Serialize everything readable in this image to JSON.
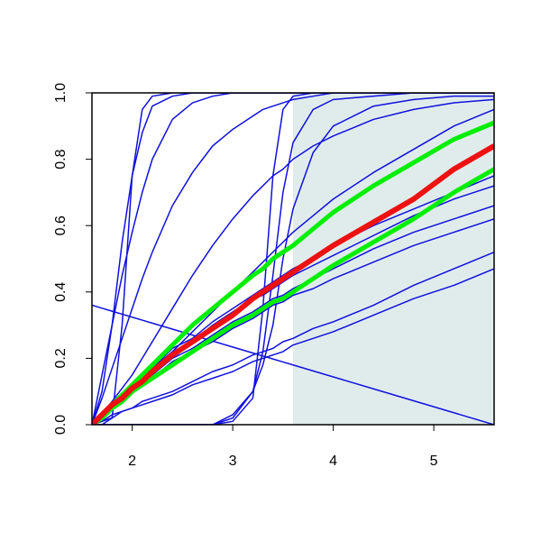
{
  "chart_data": {
    "type": "line",
    "x": [
      1.6,
      1.7,
      1.8,
      1.9,
      2.0,
      2.1,
      2.2,
      2.4,
      2.6,
      2.8,
      3.0,
      3.2,
      3.3,
      3.4,
      3.5,
      3.6,
      3.8,
      4.0,
      4.4,
      4.8,
      5.2,
      5.6
    ],
    "xlim": [
      1.6,
      5.6
    ],
    "ylim": [
      0,
      1
    ],
    "xticks": [
      2,
      3,
      4,
      5
    ],
    "yticks": [
      {
        "value": 0,
        "label": "0.0"
      },
      0.2,
      0.4,
      0.6,
      0.8,
      {
        "value": 1,
        "label": "1.0"
      }
    ],
    "shaded_region": {
      "xlim": [
        3.6,
        5.6
      ],
      "color": "#e0ecec"
    },
    "series": [
      {
        "color": "#1010dd",
        "line_width": 1.5,
        "values": [
          0,
          0.1,
          0.3,
          0.55,
          0.75,
          0.88,
          0.96,
          0.99,
          1,
          1,
          1,
          1,
          1,
          1,
          1,
          1,
          1,
          1,
          1,
          1,
          1,
          1
        ]
      },
      {
        "color": "#1010dd",
        "line_width": 1.5,
        "values": [
          0,
          0.15,
          0.3,
          0.45,
          0.58,
          0.7,
          0.8,
          0.92,
          0.97,
          0.99,
          1,
          1,
          1,
          1,
          1,
          1,
          1,
          1,
          1,
          1,
          1,
          1
        ]
      },
      {
        "color": "#1010dd",
        "line_width": 1.5,
        "values": [
          0,
          0,
          0.02,
          0.3,
          0.75,
          0.95,
          0.99,
          1,
          1,
          1,
          1,
          1,
          1,
          1,
          1,
          1,
          1,
          1,
          1,
          1,
          1,
          1
        ]
      },
      {
        "color": "#1010dd",
        "line_width": 1.5,
        "values": [
          0,
          0.08,
          0.17,
          0.26,
          0.35,
          0.44,
          0.52,
          0.66,
          0.76,
          0.84,
          0.89,
          0.93,
          0.95,
          0.96,
          0.97,
          0.98,
          0.99,
          1,
          1,
          1,
          1,
          1
        ]
      },
      {
        "color": "#1010dd",
        "line_width": 1.5,
        "values": [
          0,
          0.03,
          0.07,
          0.11,
          0.15,
          0.2,
          0.25,
          0.35,
          0.45,
          0.54,
          0.62,
          0.69,
          0.72,
          0.75,
          0.77,
          0.8,
          0.84,
          0.87,
          0.92,
          0.95,
          0.97,
          0.98
        ]
      },
      {
        "color": "#1010dd",
        "line_width": 1.5,
        "values": [
          0,
          0.02,
          0.05,
          0.08,
          0.1,
          0.13,
          0.16,
          0.22,
          0.28,
          0.34,
          0.4,
          0.46,
          0.49,
          0.52,
          0.55,
          0.58,
          0.63,
          0.68,
          0.76,
          0.83,
          0.9,
          0.95
        ]
      },
      {
        "color": "#1010dd",
        "line_width": 1.5,
        "values": [
          0,
          0,
          0,
          0,
          0,
          0,
          0,
          0,
          0,
          0,
          0.01,
          0.08,
          0.35,
          0.75,
          0.95,
          0.99,
          1,
          1,
          1,
          1,
          1,
          1
        ]
      },
      {
        "color": "#1010dd",
        "line_width": 1.5,
        "values": [
          0,
          0,
          0,
          0,
          0,
          0,
          0,
          0,
          0,
          0,
          0.02,
          0.1,
          0.22,
          0.45,
          0.7,
          0.85,
          0.95,
          0.98,
          0.99,
          1,
          1,
          1
        ]
      },
      {
        "color": "#1010dd",
        "line_width": 1.5,
        "values": [
          0,
          0,
          0,
          0,
          0,
          0,
          0,
          0,
          0,
          0,
          0.03,
          0.1,
          0.18,
          0.3,
          0.5,
          0.65,
          0.82,
          0.9,
          0.96,
          0.98,
          0.99,
          0.99
        ]
      },
      {
        "color": "#1010dd",
        "line_width": 1.5,
        "values": [
          0.36,
          0.351,
          0.342,
          0.333,
          0.324,
          0.315,
          0.306,
          0.288,
          0.27,
          0.252,
          0.234,
          0.216,
          0.207,
          0.198,
          0.189,
          0.18,
          0.162,
          0.144,
          0.108,
          0.072,
          0.036,
          0
        ]
      },
      {
        "color": "#1010dd",
        "line_width": 1.5,
        "values": [
          0,
          0.01,
          0.02,
          0.04,
          0.05,
          0.06,
          0.07,
          0.09,
          0.12,
          0.14,
          0.16,
          0.19,
          0.2,
          0.21,
          0.22,
          0.24,
          0.26,
          0.28,
          0.33,
          0.38,
          0.42,
          0.47
        ]
      },
      {
        "color": "#1010dd",
        "line_width": 1.5,
        "values": [
          0,
          0.01,
          0.03,
          0.04,
          0.05,
          0.07,
          0.08,
          0.1,
          0.13,
          0.16,
          0.18,
          0.21,
          0.22,
          0.23,
          0.25,
          0.26,
          0.29,
          0.31,
          0.36,
          0.42,
          0.47,
          0.52
        ]
      },
      {
        "color": "#1010dd",
        "line_width": 1.5,
        "values": [
          0,
          0.02,
          0.05,
          0.07,
          0.1,
          0.12,
          0.14,
          0.19,
          0.22,
          0.25,
          0.29,
          0.32,
          0.34,
          0.36,
          0.37,
          0.39,
          0.41,
          0.44,
          0.49,
          0.54,
          0.58,
          0.62
        ]
      },
      {
        "color": "#1010dd",
        "line_width": 1.5,
        "values": [
          0,
          0.03,
          0.05,
          0.08,
          0.1,
          0.13,
          0.15,
          0.2,
          0.23,
          0.27,
          0.31,
          0.34,
          0.36,
          0.38,
          0.39,
          0.41,
          0.44,
          0.47,
          0.53,
          0.58,
          0.62,
          0.66
        ]
      },
      {
        "color": "#1010dd",
        "line_width": 1.5,
        "values": [
          0,
          0.03,
          0.06,
          0.08,
          0.11,
          0.14,
          0.17,
          0.22,
          0.25,
          0.3,
          0.34,
          0.38,
          0.39,
          0.41,
          0.43,
          0.45,
          0.48,
          0.51,
          0.57,
          0.63,
          0.68,
          0.72
        ]
      },
      {
        "color": "#1010dd",
        "line_width": 1.5,
        "values": [
          0,
          0.03,
          0.06,
          0.09,
          0.12,
          0.15,
          0.17,
          0.23,
          0.26,
          0.31,
          0.35,
          0.39,
          0.41,
          0.43,
          0.45,
          0.47,
          0.5,
          0.54,
          0.6,
          0.65,
          0.7,
          0.75
        ]
      },
      {
        "color": "#00ee00",
        "line_width": 5,
        "values": [
          0,
          0.03,
          0.06,
          0.09,
          0.12,
          0.15,
          0.18,
          0.24,
          0.3,
          0.35,
          0.4,
          0.45,
          0.47,
          0.5,
          0.52,
          0.54,
          0.59,
          0.64,
          0.72,
          0.79,
          0.86,
          0.91
        ]
      },
      {
        "color": "#00ee00",
        "line_width": 5,
        "values": [
          0,
          0.02,
          0.05,
          0.07,
          0.1,
          0.12,
          0.14,
          0.18,
          0.22,
          0.26,
          0.3,
          0.33,
          0.35,
          0.37,
          0.38,
          0.4,
          0.44,
          0.48,
          0.55,
          0.62,
          0.7,
          0.77
        ]
      },
      {
        "color": "#ee1111",
        "line_width": 6,
        "values": [
          0,
          0.03,
          0.06,
          0.08,
          0.11,
          0.13,
          0.16,
          0.21,
          0.25,
          0.29,
          0.33,
          0.38,
          0.4,
          0.42,
          0.44,
          0.46,
          0.5,
          0.54,
          0.61,
          0.68,
          0.77,
          0.84
        ]
      }
    ]
  }
}
